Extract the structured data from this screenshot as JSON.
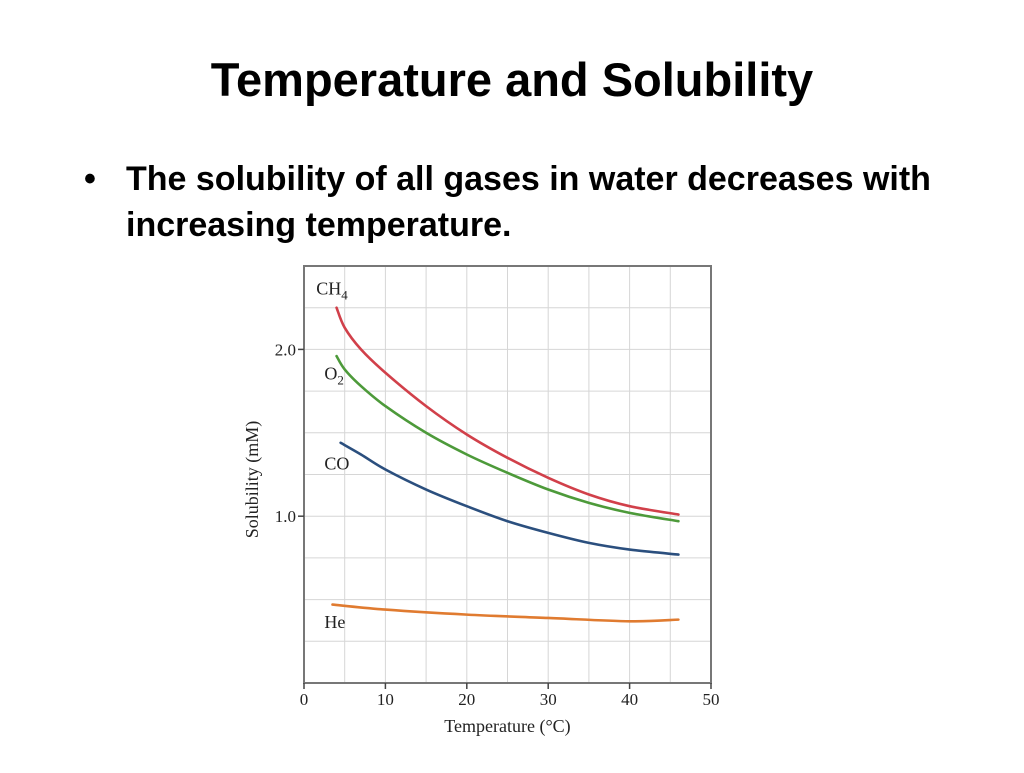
{
  "slide": {
    "title": "Temperature and Solubility",
    "bullets": [
      "The solubility of all gases in water decreases with increasing temperature."
    ],
    "bullet_glyph": "•"
  },
  "chart_data": {
    "type": "line",
    "title": "",
    "xlabel": "Temperature (°C)",
    "ylabel": "Solubility (mM)",
    "xlim": [
      0,
      50
    ],
    "ylim": [
      0,
      2.5
    ],
    "x_ticks": [
      0,
      10,
      20,
      30,
      40,
      50
    ],
    "y_tick_labels": [
      {
        "value": 1.0,
        "label": "1.0"
      },
      {
        "value": 2.0,
        "label": "2.0"
      }
    ],
    "grid": true,
    "series": [
      {
        "name": "CH4",
        "label_main": "CH",
        "label_sub": "4",
        "color": "#d1404a",
        "label_pos": [
          1.5,
          2.33
        ],
        "x": [
          4,
          5,
          7,
          10,
          15,
          20,
          25,
          30,
          35,
          40,
          46
        ],
        "y": [
          2.25,
          2.13,
          2.0,
          1.86,
          1.66,
          1.49,
          1.35,
          1.23,
          1.13,
          1.06,
          1.01
        ]
      },
      {
        "name": "O2",
        "label_main": "O",
        "label_sub": "2",
        "color": "#4d9a3a",
        "label_pos": [
          2.5,
          1.82
        ],
        "x": [
          4,
          5,
          7,
          10,
          15,
          20,
          25,
          30,
          35,
          40,
          46
        ],
        "y": [
          1.96,
          1.88,
          1.78,
          1.66,
          1.5,
          1.37,
          1.26,
          1.16,
          1.08,
          1.02,
          0.97
        ]
      },
      {
        "name": "CO",
        "label_main": "CO",
        "label_sub": "",
        "color": "#2b4f7e",
        "label_pos": [
          2.5,
          1.28
        ],
        "x": [
          4.5,
          7,
          10,
          15,
          20,
          25,
          30,
          35,
          40,
          46
        ],
        "y": [
          1.44,
          1.37,
          1.28,
          1.16,
          1.06,
          0.97,
          0.9,
          0.84,
          0.8,
          0.77
        ]
      },
      {
        "name": "He",
        "label_main": "He",
        "label_sub": "",
        "color": "#e07b30",
        "label_pos": [
          2.5,
          0.33
        ],
        "x": [
          3.5,
          10,
          20,
          30,
          40,
          46
        ],
        "y": [
          0.47,
          0.44,
          0.41,
          0.39,
          0.37,
          0.38
        ]
      }
    ]
  }
}
